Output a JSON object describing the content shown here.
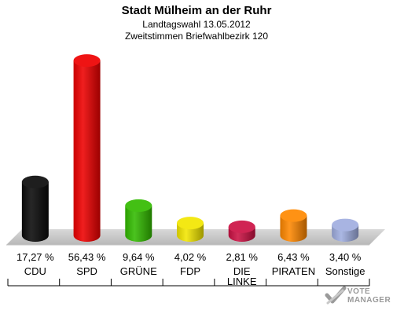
{
  "header": {
    "title": "Stadt Mülheim an der Ruhr",
    "subtitle1": "Landtagswahl 13.05.2012",
    "subtitle2": "Zweitstimmen Briefwahlbezirk 120"
  },
  "logo": {
    "line1": "VOTE",
    "line2": "MANAGER"
  },
  "chart_data": {
    "type": "bar",
    "title": "Stadt Mülheim an der Ruhr",
    "subtitle": "Landtagswahl 13.05.2012 / Zweitstimmen Briefwahlbezirk 120",
    "categories": [
      "CDU",
      "SPD",
      "GRÜNE",
      "FDP",
      "DIE LINKE",
      "PIRATEN",
      "Sonstige"
    ],
    "category_lines": [
      [
        "CDU"
      ],
      [
        "SPD"
      ],
      [
        "GRÜNE"
      ],
      [
        "FDP"
      ],
      [
        "DIE",
        "LINKE"
      ],
      [
        "PIRATEN"
      ],
      [
        "Sonstige"
      ]
    ],
    "values": [
      17.27,
      56.43,
      9.64,
      4.02,
      2.81,
      6.43,
      3.4
    ],
    "value_labels": [
      "17,27 %",
      "56,43 %",
      "9,64 %",
      "4,02 %",
      "2,81 %",
      "6,43 %",
      "3,40 %"
    ],
    "colors": [
      "#0a0a0a",
      "#ee0000",
      "#33bb00",
      "#f2e600",
      "#cc1144",
      "#ff8800",
      "#a0aee0"
    ],
    "unit": "%",
    "xlabel": "",
    "ylabel": "",
    "grid": false,
    "legend": "none"
  }
}
